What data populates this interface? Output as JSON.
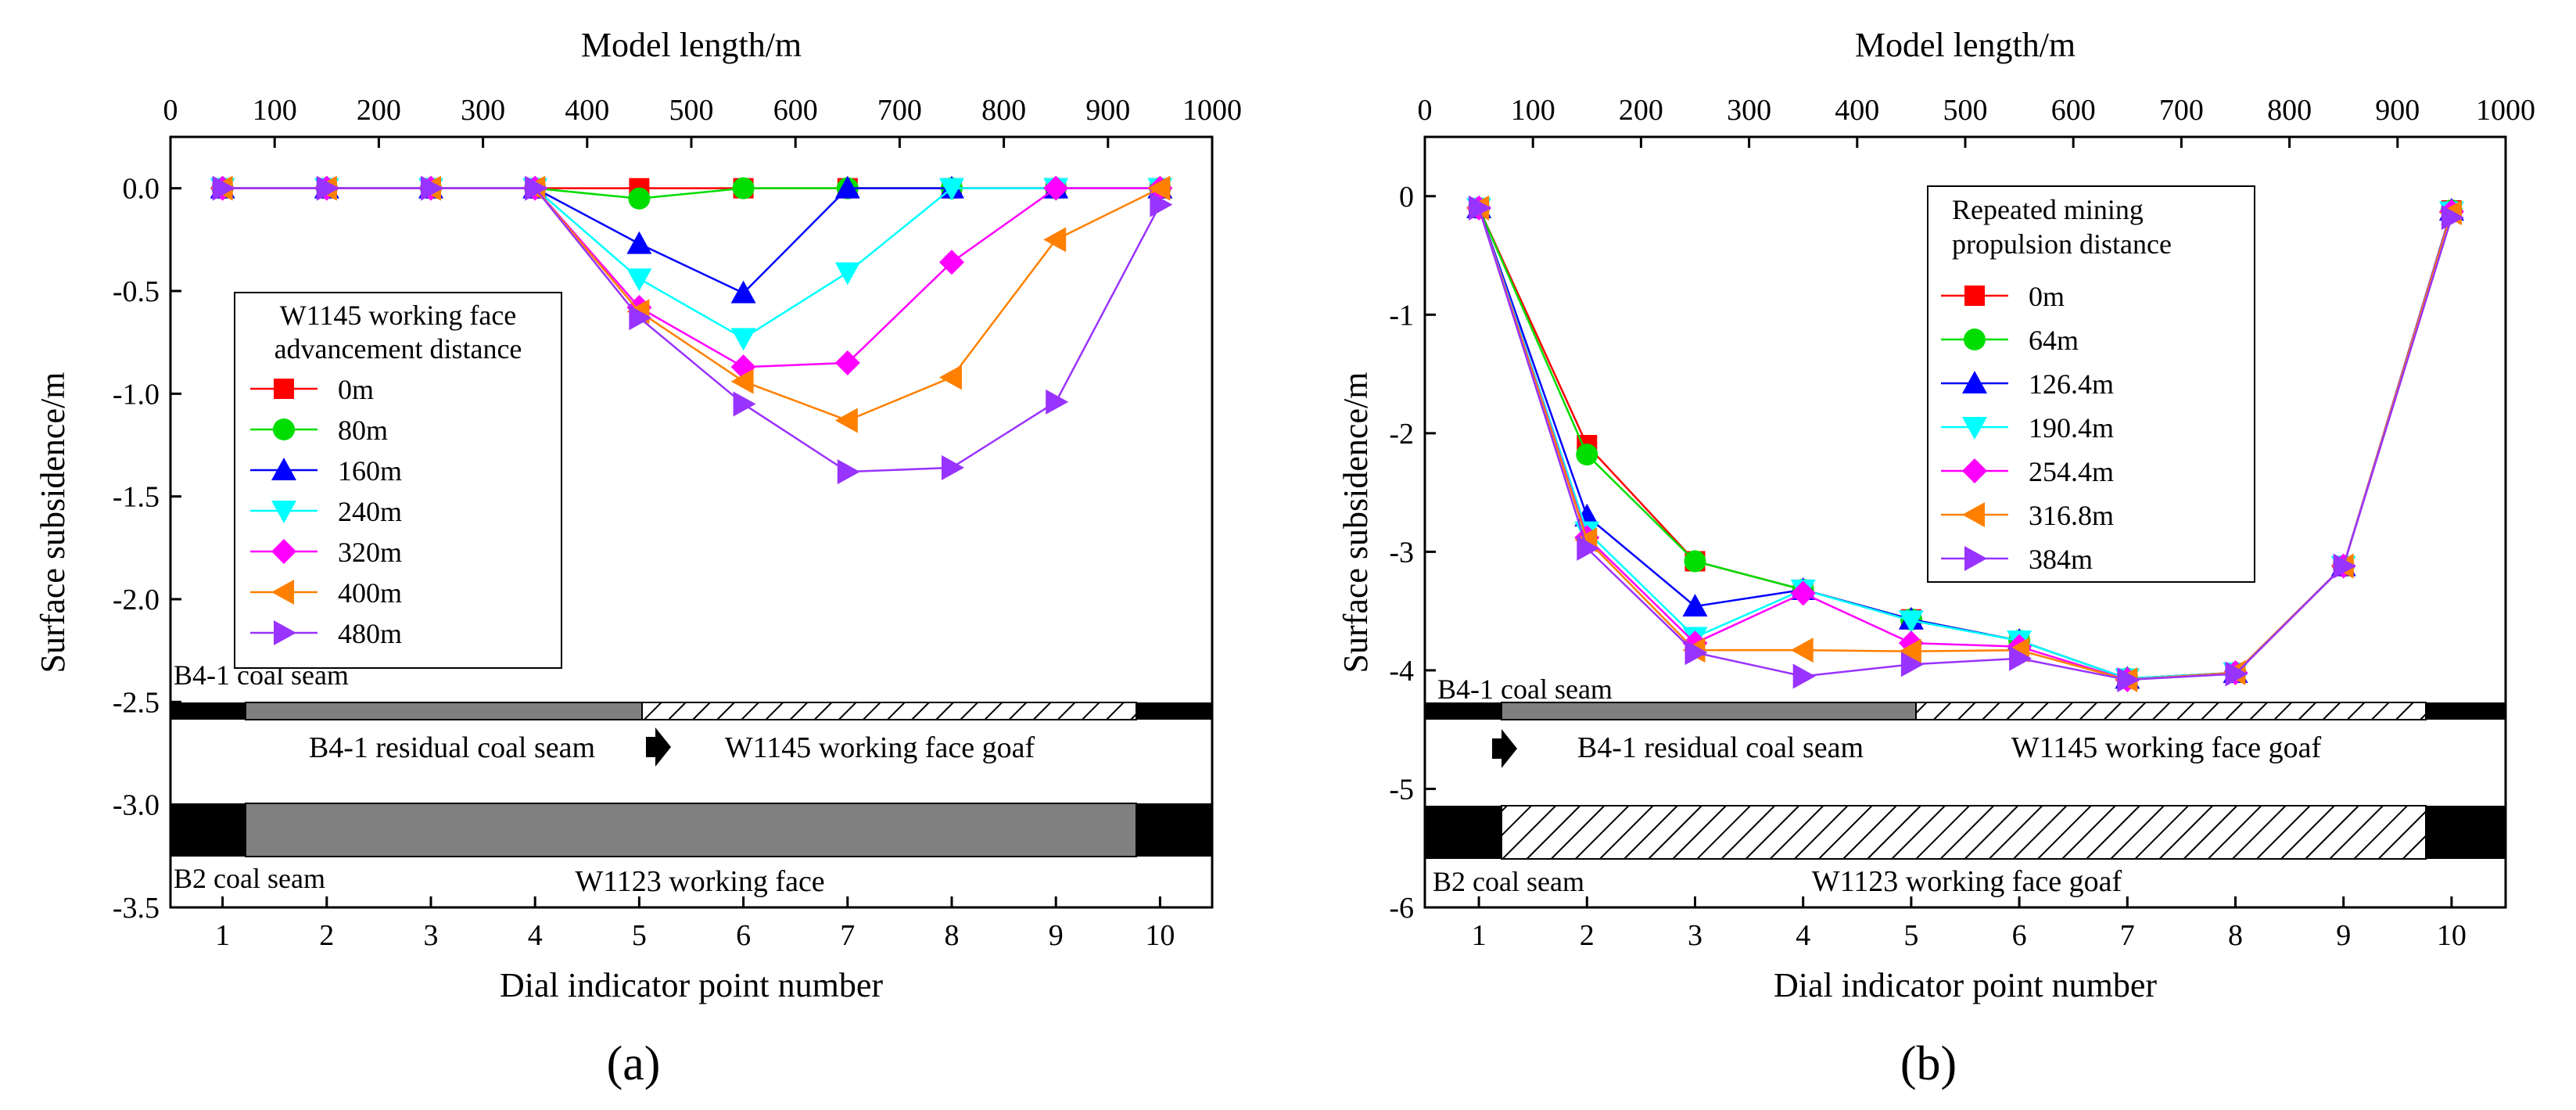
{
  "figure": {
    "panels": [
      "(a)",
      "(b)"
    ]
  },
  "chart_data": [
    {
      "type": "line",
      "panel_label": "(a)",
      "xlabel": "Dial indicator point number",
      "x2label": "Model length/m",
      "ylabel": "Surface subsidence/m",
      "xlim": [
        0.5,
        10.5
      ],
      "ylim": [
        -3.5,
        0.25
      ],
      "x": [
        1,
        2,
        3,
        4,
        5,
        6,
        7,
        8,
        9,
        10
      ],
      "x_ticks": [
        "1",
        "2",
        "3",
        "4",
        "5",
        "6",
        "7",
        "8",
        "9",
        "10"
      ],
      "x2_ticks": [
        "0",
        "100",
        "200",
        "300",
        "400",
        "500",
        "600",
        "700",
        "800",
        "900",
        "1000"
      ],
      "y_ticks": [
        "0.0",
        "-0.5",
        "-1.0",
        "-1.5",
        "-2.0",
        "-2.5",
        "-3.0",
        "-3.5"
      ],
      "legend_title": [
        "W1145 working face",
        "advancement distance"
      ],
      "legend_position": "left",
      "series": [
        {
          "name": "0m",
          "color": "#ff0000",
          "marker": "square",
          "values": [
            0,
            0,
            0,
            0,
            0,
            0,
            0,
            0,
            0,
            0
          ]
        },
        {
          "name": "80m",
          "color": "#00dd00",
          "marker": "circle",
          "values": [
            0,
            0,
            0,
            0,
            -0.05,
            0,
            0,
            0,
            0,
            0
          ]
        },
        {
          "name": "160m",
          "color": "#0000ff",
          "marker": "triangle-up",
          "values": [
            0,
            0,
            0,
            0,
            -0.27,
            -0.51,
            0,
            0,
            0,
            0
          ]
        },
        {
          "name": "240m",
          "color": "#00ffff",
          "marker": "triangle-down",
          "values": [
            0,
            0,
            0,
            0,
            -0.44,
            -0.73,
            -0.41,
            0,
            0,
            0
          ]
        },
        {
          "name": "320m",
          "color": "#ff00ff",
          "marker": "diamond",
          "values": [
            0,
            0,
            0,
            0,
            -0.58,
            -0.87,
            -0.85,
            -0.36,
            0,
            0
          ]
        },
        {
          "name": "400m",
          "color": "#ff8000",
          "marker": "triangle-left",
          "values": [
            0,
            0,
            0,
            0,
            -0.6,
            -0.94,
            -1.13,
            -0.92,
            -0.25,
            0
          ]
        },
        {
          "name": "480m",
          "color": "#9933ff",
          "marker": "triangle-right",
          "values": [
            0,
            0,
            0,
            0,
            -0.63,
            -1.05,
            -1.38,
            -1.36,
            -1.04,
            -0.08
          ]
        }
      ],
      "strata": {
        "upper_seam_label": "B4-1 coal seam",
        "upper_left_label": "B4-1 residual coal seam",
        "upper_right_label": "W1145 working face goaf",
        "lower_seam_label": "B2 coal seam",
        "lower_label": "W1123 working face",
        "colors": {
          "coal": "#000000",
          "residual": "#808080",
          "goaf_fill": "#ffffff"
        }
      }
    },
    {
      "type": "line",
      "panel_label": "(b)",
      "xlabel": "Dial indicator point number",
      "x2label": "Model length/m",
      "ylabel": "Surface subsidence/m",
      "xlim": [
        0.5,
        10.5
      ],
      "ylim": [
        -6,
        0.5
      ],
      "x": [
        1,
        2,
        3,
        4,
        5,
        6,
        7,
        8,
        9,
        10
      ],
      "x_ticks": [
        "1",
        "2",
        "3",
        "4",
        "5",
        "6",
        "7",
        "8",
        "9",
        "10"
      ],
      "x2_ticks": [
        "0",
        "100",
        "200",
        "300",
        "400",
        "500",
        "600",
        "700",
        "800",
        "900",
        "1000"
      ],
      "y_ticks": [
        "0",
        "-1",
        "-2",
        "-3",
        "-4",
        "-5",
        "-6"
      ],
      "legend_title": [
        "Repeated mining",
        "propulsion distance"
      ],
      "legend_position": "upper-center",
      "series": [
        {
          "name": "0m",
          "color": "#ff0000",
          "marker": "square",
          "values": [
            -0.1,
            -2.1,
            -3.08,
            -3.32,
            -3.57,
            -3.75,
            -4.07,
            -4.02,
            -3.12,
            -0.12
          ]
        },
        {
          "name": "64m",
          "color": "#00dd00",
          "marker": "circle",
          "values": [
            -0.1,
            -2.18,
            -3.08,
            -3.32,
            -3.57,
            -3.75,
            -4.07,
            -4.02,
            -3.12,
            -0.12
          ]
        },
        {
          "name": "126.4m",
          "color": "#0000ff",
          "marker": "triangle-up",
          "values": [
            -0.1,
            -2.7,
            -3.46,
            -3.32,
            -3.57,
            -3.75,
            -4.07,
            -4.02,
            -3.12,
            -0.12
          ]
        },
        {
          "name": "190.4m",
          "color": "#00ffff",
          "marker": "triangle-down",
          "values": [
            -0.1,
            -2.83,
            -3.72,
            -3.32,
            -3.58,
            -3.75,
            -4.07,
            -4.02,
            -3.12,
            -0.13
          ]
        },
        {
          "name": "254.4m",
          "color": "#ff00ff",
          "marker": "diamond",
          "values": [
            -0.1,
            -2.88,
            -3.77,
            -3.35,
            -3.77,
            -3.8,
            -4.08,
            -4.02,
            -3.12,
            -0.13
          ]
        },
        {
          "name": "316.8m",
          "color": "#ff8000",
          "marker": "triangle-left",
          "values": [
            -0.1,
            -2.9,
            -3.83,
            -3.83,
            -3.84,
            -3.83,
            -4.08,
            -4.02,
            -3.12,
            -0.14
          ]
        },
        {
          "name": "384m",
          "color": "#9933ff",
          "marker": "triangle-right",
          "values": [
            -0.1,
            -2.97,
            -3.85,
            -4.05,
            -3.95,
            -3.9,
            -4.08,
            -4.03,
            -3.12,
            -0.18
          ]
        }
      ],
      "strata": {
        "upper_seam_label": "B4-1 coal seam",
        "upper_left_label": "B4-1 residual coal seam",
        "upper_right_label": "W1145 working face goaf",
        "lower_seam_label": "B2 coal seam",
        "lower_label": "W1123 working face goaf",
        "colors": {
          "coal": "#000000",
          "residual": "#808080",
          "goaf_fill": "#ffffff"
        }
      }
    }
  ]
}
